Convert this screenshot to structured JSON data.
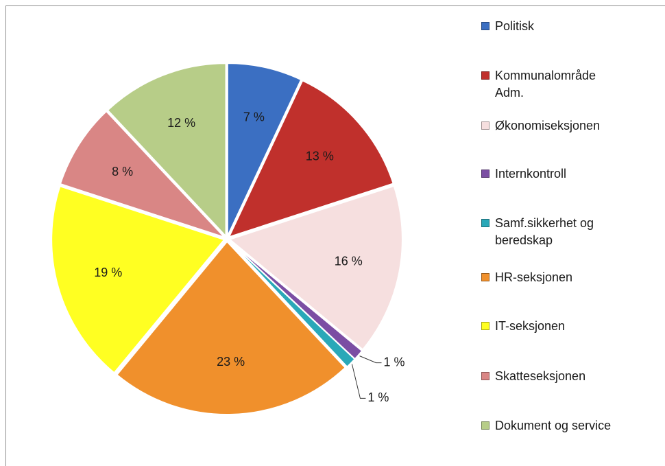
{
  "chart_data": {
    "type": "pie",
    "categories": [
      "Politisk",
      "Kommunalområde Adm.",
      "Økonomiseksjonen",
      "Internkontroll",
      "Samf.sikkerhet og beredskap",
      "HR-seksjonen",
      "IT-seksjonen",
      "Skatteseksjonen",
      "Dokument og service"
    ],
    "values": [
      7,
      13,
      16,
      1,
      1,
      23,
      19,
      8,
      12
    ],
    "value_labels": [
      "7 %",
      "13 %",
      "16 %",
      "1 %",
      "1 %",
      "23 %",
      "19 %",
      "8 %",
      "12 %"
    ],
    "colors": [
      "#3b6fc2",
      "#c0302c",
      "#f6dfdf",
      "#7b4ea3",
      "#2aa8b8",
      "#f0902c",
      "#ffff22",
      "#d98685",
      "#b7cd88"
    ],
    "legend": "right"
  }
}
